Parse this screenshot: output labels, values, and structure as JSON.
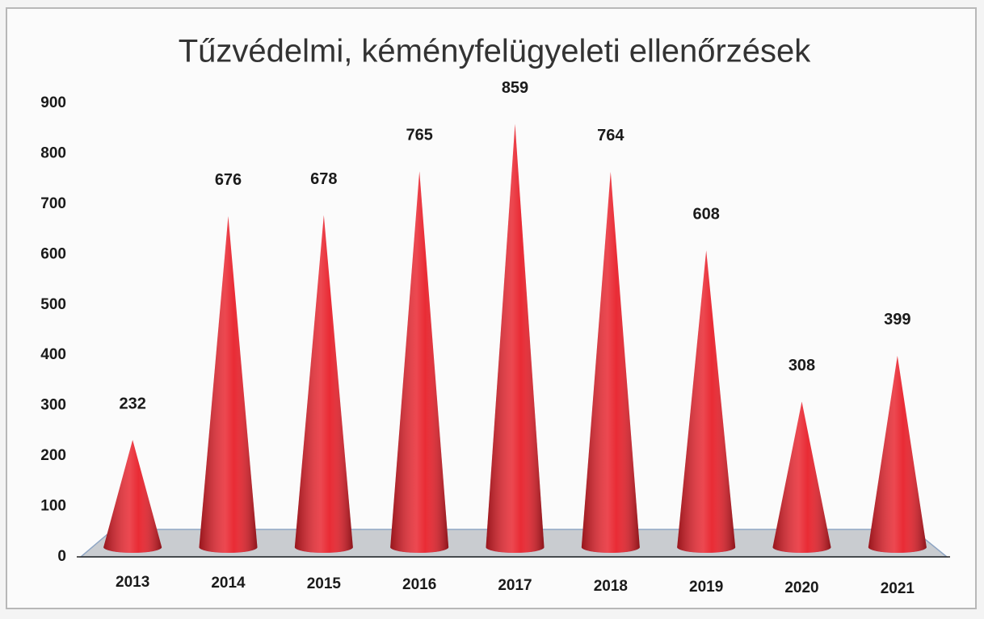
{
  "chart_data": {
    "type": "bar",
    "title": "Tűzvédelmi, kéményfelügyeleti ellenőrzések",
    "categories": [
      "2013",
      "2014",
      "2015",
      "2016",
      "2017",
      "2018",
      "2019",
      "2020",
      "2021"
    ],
    "values": [
      232,
      676,
      678,
      765,
      859,
      764,
      608,
      308,
      399
    ],
    "color": "#e8202a",
    "ylim": [
      0,
      900
    ],
    "yticks": [
      0,
      100,
      200,
      300,
      400,
      500,
      600,
      700,
      800,
      900
    ],
    "grid": false
  }
}
